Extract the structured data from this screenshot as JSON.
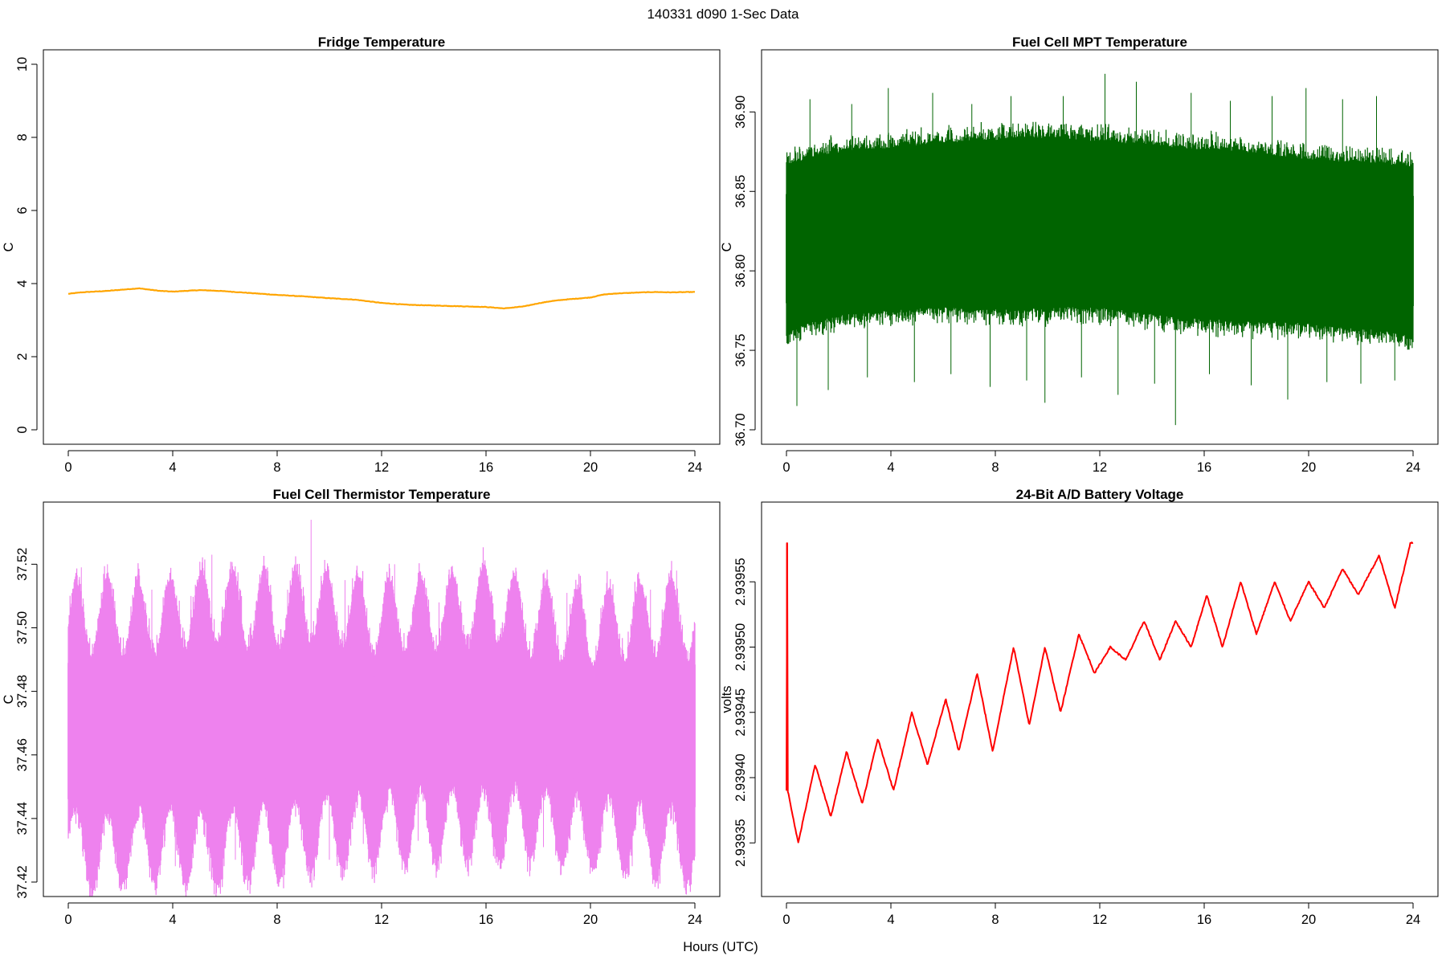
{
  "figure": {
    "suptitle": "140331   d090   1-Sec Data",
    "xlabel": "Hours (UTC)"
  },
  "chart_data": [
    {
      "type": "line",
      "title": "Fridge Temperature",
      "xlabel": "",
      "ylabel": "C",
      "color": "#FFA500",
      "xlim": [
        0,
        24
      ],
      "ylim": [
        0,
        10
      ],
      "xticks": [
        0,
        4,
        8,
        12,
        16,
        20,
        24
      ],
      "yticks": [
        0,
        2,
        4,
        6,
        8,
        10
      ],
      "ytick_labels": [
        "0",
        "2",
        "4",
        "6",
        "8",
        "10"
      ],
      "series": [
        {
          "name": "fridge",
          "x": [
            0,
            0.5,
            1,
            1.5,
            2,
            2.7,
            3.5,
            4,
            4.5,
            5,
            5.5,
            6,
            7,
            8,
            9,
            10,
            10.5,
            11,
            12,
            13,
            14,
            15,
            16,
            16.7,
            17.5,
            18,
            18.5,
            19,
            20,
            20.5,
            21,
            22,
            22.5,
            23,
            24
          ],
          "y": [
            3.72,
            3.76,
            3.78,
            3.8,
            3.83,
            3.87,
            3.8,
            3.78,
            3.8,
            3.82,
            3.81,
            3.79,
            3.74,
            3.69,
            3.65,
            3.6,
            3.58,
            3.56,
            3.47,
            3.42,
            3.4,
            3.38,
            3.36,
            3.32,
            3.38,
            3.46,
            3.52,
            3.56,
            3.62,
            3.7,
            3.73,
            3.76,
            3.77,
            3.76,
            3.77
          ]
        }
      ]
    },
    {
      "type": "line",
      "title": "Fuel Cell MPT Temperature",
      "xlabel": "",
      "ylabel": "C",
      "color": "#006400",
      "xlim": [
        0,
        24
      ],
      "ylim": [
        36.7,
        36.93
      ],
      "xticks": [
        0,
        4,
        8,
        12,
        16,
        20,
        24
      ],
      "yticks": [
        36.7,
        36.75,
        36.8,
        36.85,
        36.9
      ],
      "ytick_labels": [
        "36.70",
        "36.75",
        "36.80",
        "36.85",
        "36.90"
      ],
      "series": [
        {
          "name": "mpt_envelope",
          "x": [
            0,
            1,
            2,
            3,
            4,
            5,
            6,
            7,
            8,
            9,
            10,
            11,
            12,
            13,
            14,
            15,
            16,
            17,
            18,
            19,
            20,
            21,
            22,
            23,
            24
          ],
          "y_low": [
            36.762,
            36.768,
            36.772,
            36.774,
            36.775,
            36.777,
            36.777,
            36.777,
            36.776,
            36.776,
            36.777,
            36.778,
            36.777,
            36.775,
            36.773,
            36.771,
            36.77,
            36.769,
            36.768,
            36.768,
            36.767,
            36.765,
            36.764,
            36.762,
            36.76
          ],
          "y_high": [
            36.866,
            36.872,
            36.874,
            36.876,
            36.877,
            36.879,
            36.88,
            36.881,
            36.882,
            36.884,
            36.883,
            36.882,
            36.881,
            36.88,
            36.879,
            36.877,
            36.876,
            36.875,
            36.874,
            36.872,
            36.87,
            36.869,
            36.868,
            36.867,
            36.865
          ],
          "spike_x": [
            0.4,
            0.9,
            1.6,
            2.5,
            3.1,
            3.9,
            4.9,
            5.6,
            6.3,
            7.1,
            7.8,
            8.6,
            9.2,
            9.9,
            10.6,
            11.3,
            12.2,
            12.7,
            13.4,
            14.1,
            14.9,
            15.5,
            16.2,
            17.0,
            17.8,
            18.6,
            19.2,
            19.9,
            20.7,
            21.3,
            22.0,
            22.6,
            23.3
          ],
          "spike_y": [
            36.715,
            36.908,
            36.725,
            36.905,
            36.733,
            36.915,
            36.73,
            36.912,
            36.735,
            36.905,
            36.727,
            36.91,
            36.731,
            36.717,
            36.91,
            36.733,
            36.924,
            36.722,
            36.919,
            36.729,
            36.703,
            36.912,
            36.735,
            36.907,
            36.728,
            36.91,
            36.719,
            36.915,
            36.73,
            36.908,
            36.729,
            36.91,
            36.731
          ]
        }
      ]
    },
    {
      "type": "line",
      "title": "Fuel Cell Thermistor Temperature",
      "xlabel": "",
      "ylabel": "C",
      "color": "#EE82EE",
      "xlim": [
        0,
        24
      ],
      "ylim": [
        37.42,
        37.535
      ],
      "xticks": [
        0,
        4,
        8,
        12,
        16,
        20,
        24
      ],
      "yticks": [
        37.42,
        37.44,
        37.46,
        37.48,
        37.5,
        37.52
      ],
      "ytick_labels": [
        "37.42",
        "37.44",
        "37.46",
        "37.48",
        "37.50",
        "37.52"
      ],
      "series": [
        {
          "name": "thermistor_envelope",
          "x": [
            0,
            1,
            2,
            3,
            4,
            5,
            6,
            7,
            8,
            9,
            10,
            11,
            12,
            13,
            14,
            15,
            16,
            17,
            18,
            19,
            20,
            21,
            22,
            23,
            24
          ],
          "y_low": [
            37.435,
            37.43,
            37.432,
            37.434,
            37.433,
            37.432,
            37.433,
            37.434,
            37.434,
            37.436,
            37.437,
            37.437,
            37.438,
            37.439,
            37.439,
            37.44,
            37.44,
            37.44,
            37.44,
            37.438,
            37.437,
            37.436,
            37.435,
            37.434,
            37.432
          ],
          "y_high": [
            37.5,
            37.503,
            37.502,
            37.501,
            37.503,
            37.505,
            37.505,
            37.504,
            37.503,
            37.506,
            37.505,
            37.504,
            37.502,
            37.503,
            37.503,
            37.504,
            37.506,
            37.504,
            37.501,
            37.5,
            37.499,
            37.5,
            37.501,
            37.503,
            37.5
          ],
          "swing_amplitude": 0.012,
          "swing_period_hours": 1.2,
          "spike_x": [
            0.5,
            1.0,
            1.5,
            2.4,
            3.2,
            4.1,
            4.7,
            5.5,
            6.4,
            7.3,
            7.9,
            8.4,
            9.3,
            10.0,
            10.6,
            11.3,
            12.5,
            13.4,
            14.2,
            15.1,
            16.0,
            16.6,
            17.4,
            18.2,
            19.1,
            19.8,
            20.8,
            21.6,
            22.3,
            23.3
          ],
          "spike_y": [
            37.519,
            37.421,
            37.52,
            37.428,
            37.512,
            37.425,
            37.51,
            37.523,
            37.427,
            37.514,
            37.425,
            37.512,
            37.534,
            37.427,
            37.515,
            37.432,
            37.52,
            37.433,
            37.508,
            37.433,
            37.514,
            37.432,
            37.508,
            37.431,
            37.511,
            37.433,
            37.509,
            37.425,
            37.512,
            37.518
          ]
        }
      ]
    },
    {
      "type": "line",
      "title": "24-Bit A/D Battery Voltage",
      "xlabel": "",
      "ylabel": "volts",
      "color": "#FF0000",
      "xlim": [
        0,
        24
      ],
      "ylim": [
        2.93932,
        2.9396
      ],
      "xticks": [
        0,
        4,
        8,
        12,
        16,
        20,
        24
      ],
      "yticks": [
        2.93935,
        2.9394,
        2.93945,
        2.9395,
        2.93955
      ],
      "ytick_labels": [
        "2.93935",
        "2.93940",
        "2.93945",
        "2.93950",
        "2.93955"
      ],
      "series": [
        {
          "name": "battery_voltage",
          "x": [
            0,
            0.02,
            0.04,
            0.05,
            0.45,
            1.1,
            1.7,
            2.3,
            2.9,
            3.5,
            4.1,
            4.8,
            5.4,
            6.1,
            6.6,
            7.3,
            7.9,
            8.7,
            9.3,
            9.9,
            10.5,
            11.2,
            11.8,
            12.4,
            13.0,
            13.7,
            14.3,
            14.9,
            15.5,
            16.1,
            16.7,
            17.4,
            18.0,
            18.7,
            19.3,
            20.0,
            20.6,
            21.3,
            21.9,
            22.7,
            23.3,
            23.9,
            24.0
          ],
          "y": [
            2.93939,
            2.93958,
            2.93958,
            2.93939,
            2.93935,
            2.93941,
            2.93937,
            2.93942,
            2.93938,
            2.93943,
            2.93939,
            2.93945,
            2.93941,
            2.93946,
            2.93942,
            2.93948,
            2.93942,
            2.9395,
            2.93944,
            2.9395,
            2.93945,
            2.93951,
            2.93948,
            2.9395,
            2.93949,
            2.93952,
            2.93949,
            2.93952,
            2.9395,
            2.93954,
            2.9395,
            2.93955,
            2.93951,
            2.93955,
            2.93952,
            2.93955,
            2.93953,
            2.93956,
            2.93954,
            2.93957,
            2.93953,
            2.93958,
            2.93958
          ]
        }
      ]
    }
  ]
}
